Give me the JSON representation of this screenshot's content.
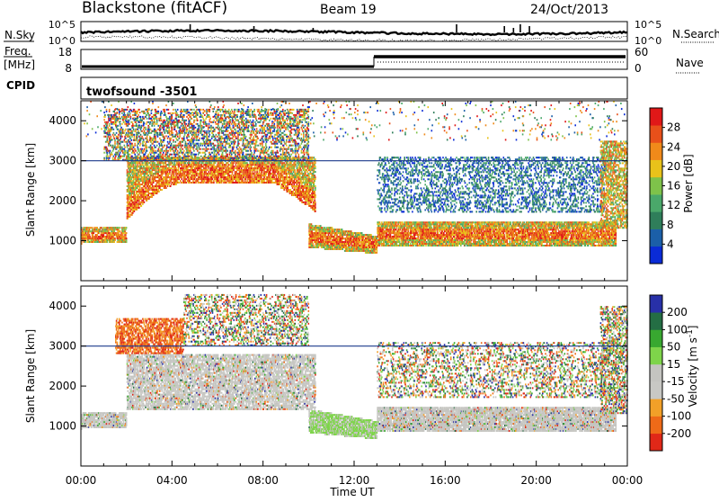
{
  "header": {
    "station": "Blackstone (fitACF)",
    "beam": "Beam 19",
    "date": "24/Oct/2013"
  },
  "top_panels": {
    "nsky_label": "N.Sky",
    "nsky_top": "10^5",
    "nsky_bottom": "10^0",
    "nsearch_label": "N.Search",
    "nsearch_top": "10^5",
    "nsearch_bottom": "10^0",
    "freq_label_1": "Freq.",
    "freq_label_2": "[MHz]",
    "freq_top": "18",
    "freq_bottom": "8",
    "nave_label": "Nave",
    "nave_top": "60",
    "nave_bottom": "0",
    "cpid_label": "CPID",
    "cpid_value": "twofsound -3501"
  },
  "colors": {
    "power": [
      "#0a2bd6",
      "#1b5fa8",
      "#2f7e5a",
      "#4aa86a",
      "#7ec24a",
      "#e8c21a",
      "#f08a1a",
      "#e8501a",
      "#e01818"
    ],
    "velocity": [
      "#2830a8",
      "#246e44",
      "#38a830",
      "#7ed44a",
      "#c4c4c0",
      "#c8c8c4",
      "#f2a028",
      "#ee6a18",
      "#e02818"
    ]
  },
  "chart_data": [
    {
      "type": "heatmap",
      "name": "Power",
      "xlabel": "",
      "ylabel": "Slant Range [km]",
      "xlim": [
        0,
        24
      ],
      "ylim": [
        0,
        4500
      ],
      "yticks": [
        "1000",
        "2000",
        "3000",
        "4000"
      ],
      "colorbar": {
        "label": "Power [dB]",
        "ticks": [
          "4",
          "8",
          "12",
          "16",
          "20",
          "24",
          "28"
        ],
        "range": [
          0,
          32
        ]
      },
      "scatter_bands": [
        {
          "t": [
            0,
            2
          ],
          "range": [
            850,
            1350
          ],
          "level": "high"
        },
        {
          "t": [
            2,
            10
          ],
          "range": [
            1500,
            3000
          ],
          "level": "mid"
        },
        {
          "t": [
            10,
            13
          ],
          "range": [
            700,
            1200
          ],
          "level": "high"
        },
        {
          "t": [
            13,
            23
          ],
          "range": [
            800,
            1400
          ],
          "level": "high"
        },
        {
          "t": [
            2,
            10
          ],
          "range": [
            3000,
            4200
          ],
          "level": "mixed"
        },
        {
          "t": [
            13,
            23
          ],
          "range": [
            1800,
            3100
          ],
          "level": "low"
        }
      ]
    },
    {
      "type": "heatmap",
      "name": "Velocity",
      "xlabel": "Time UT",
      "ylabel": "Slant Range [km]",
      "xlim": [
        0,
        24
      ],
      "ylim": [
        0,
        4500
      ],
      "xticks": [
        "00:00",
        "04:00",
        "08:00",
        "12:00",
        "16:00",
        "20:00",
        "00:00"
      ],
      "yticks": [
        "1000",
        "2000",
        "3000",
        "4000"
      ],
      "colorbar": {
        "label": "Velocity [m s^-1]",
        "ticks": [
          "200",
          "100",
          "50",
          "15",
          "-15",
          "-50",
          "-100",
          "-200"
        ],
        "range": [
          -250,
          250
        ]
      }
    }
  ]
}
